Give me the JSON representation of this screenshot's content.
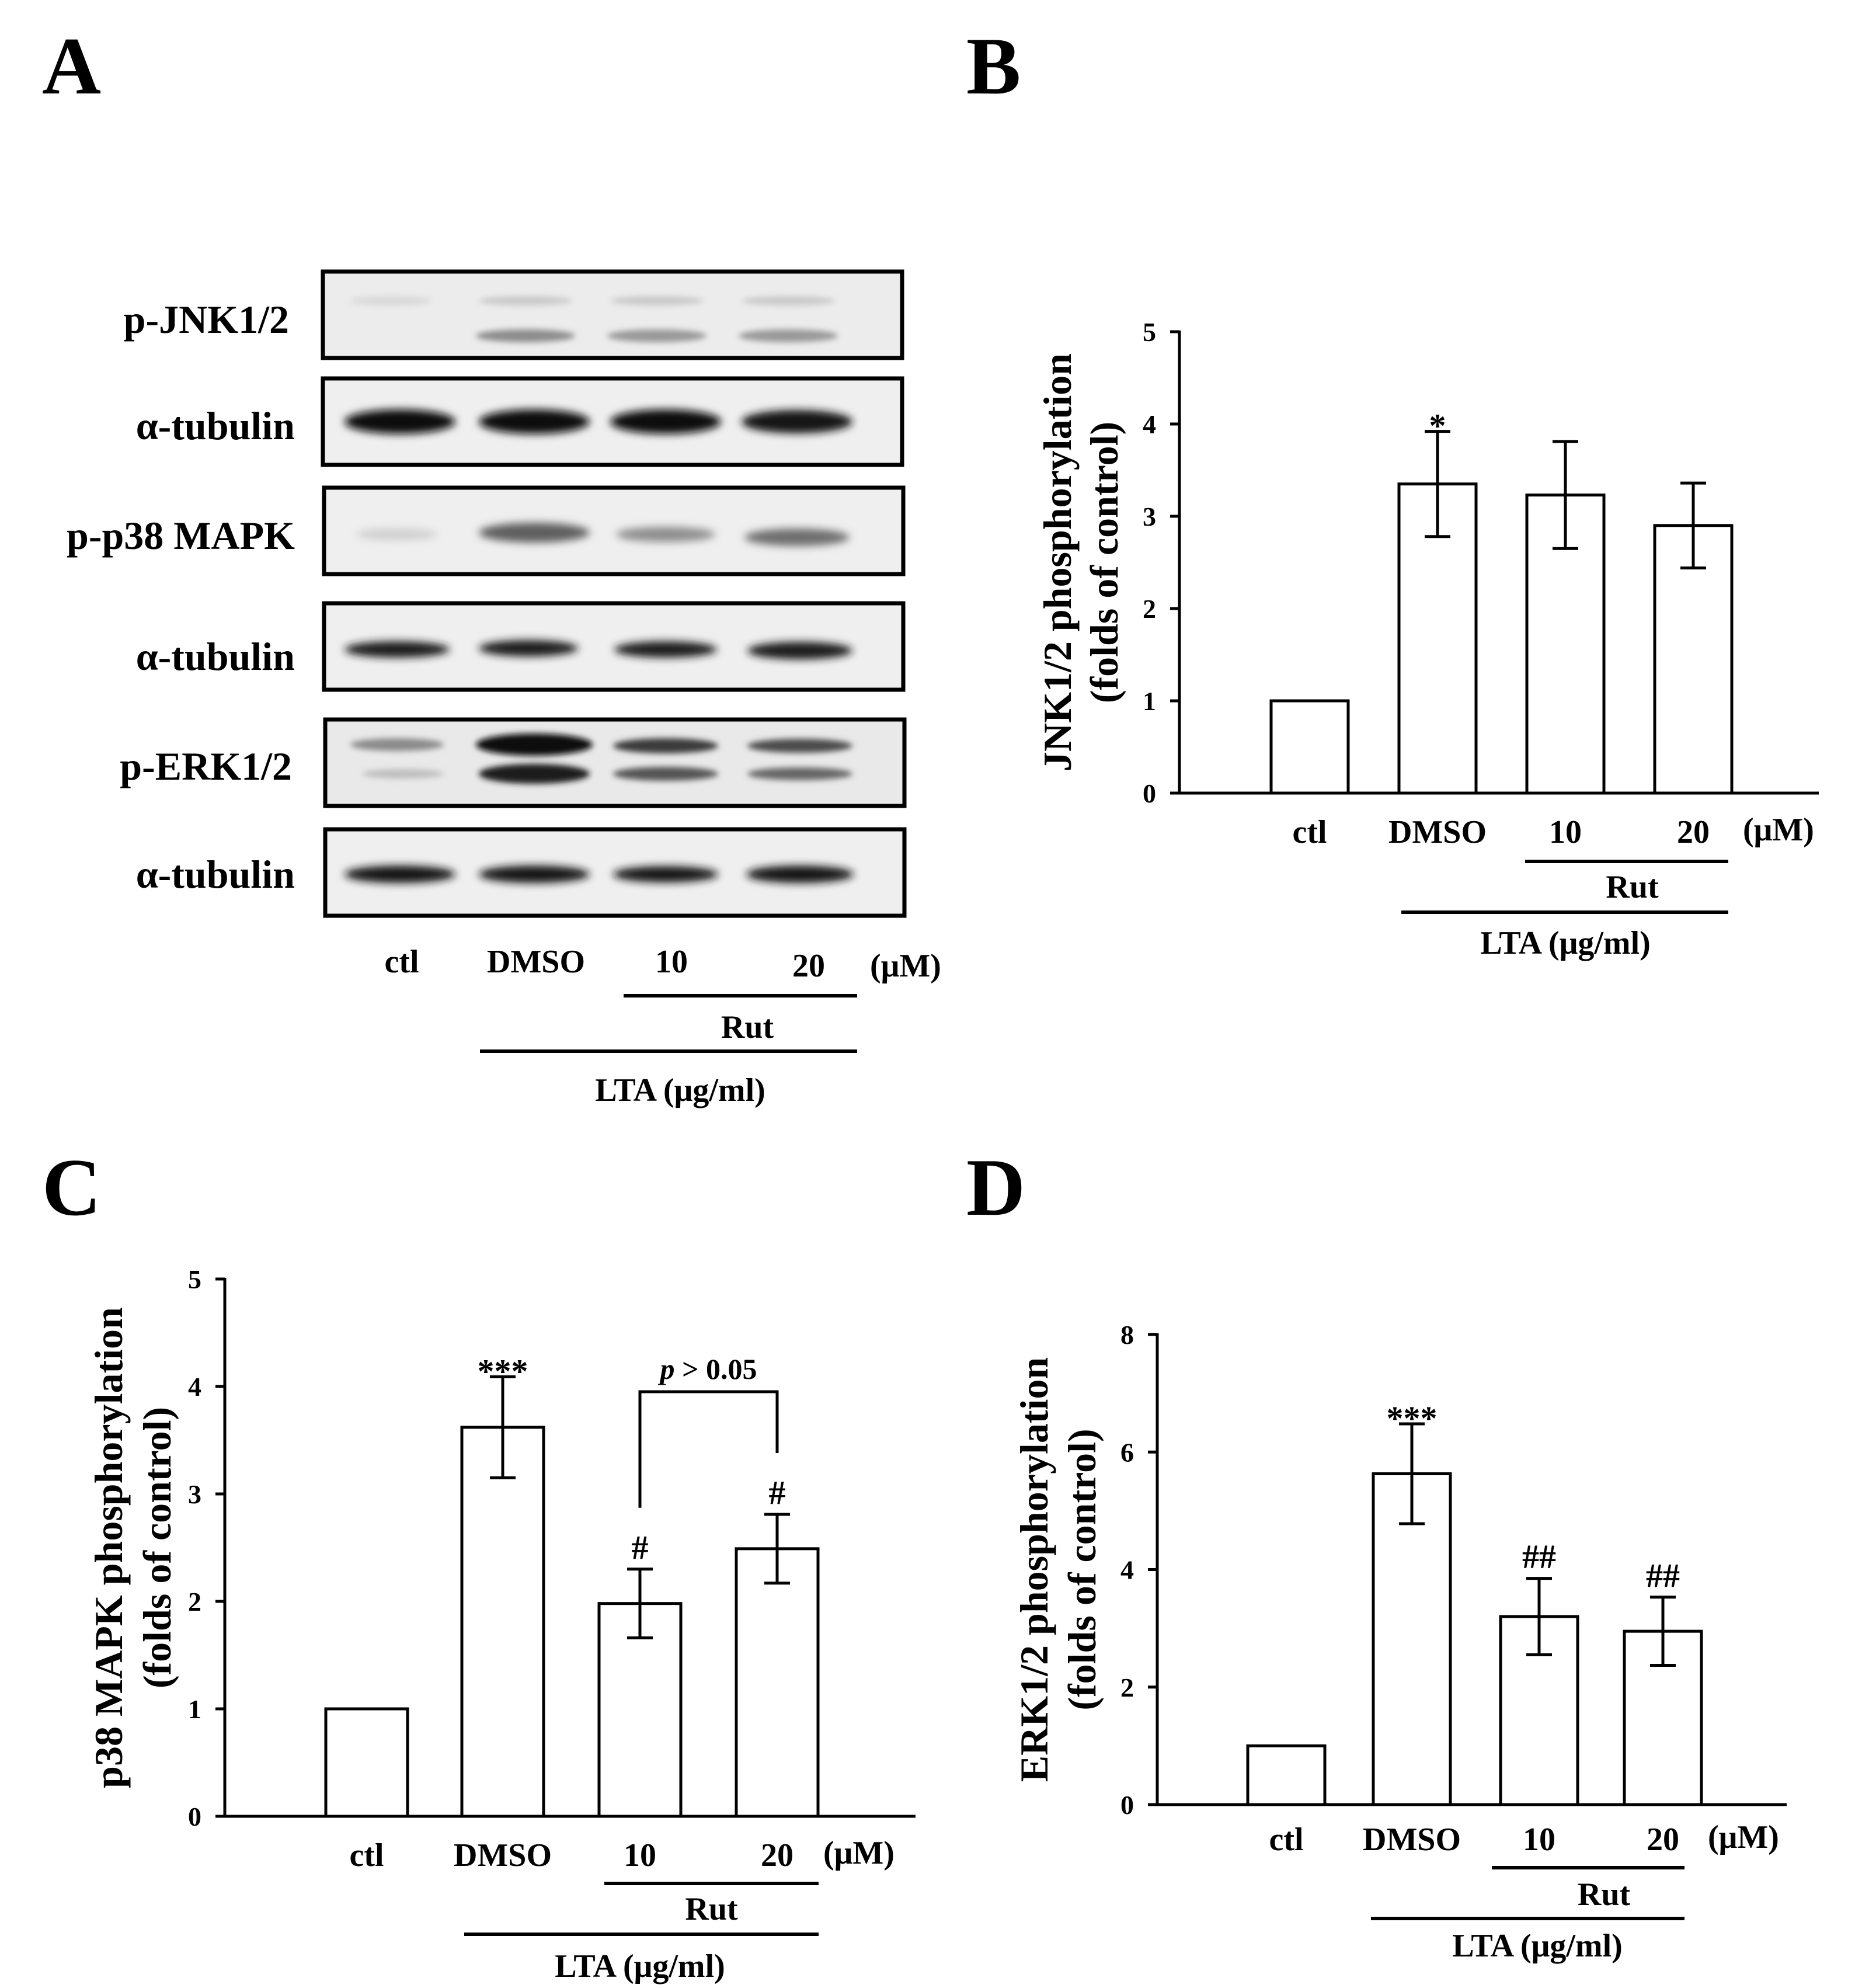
{
  "panels": [
    {
      "id": "A",
      "letter": "A"
    },
    {
      "id": "B",
      "letter": "B"
    },
    {
      "id": "C",
      "letter": "C"
    },
    {
      "id": "D",
      "letter": "D"
    }
  ],
  "blot": {
    "rows": [
      "p-JNK1/2",
      "α-tubulin",
      "p-p38 MAPK",
      "α-tubulin",
      "p-ERK1/2",
      "α-tubulin"
    ]
  },
  "x_groups": {
    "categories": [
      "ctl",
      "DMSO",
      "10",
      "20"
    ],
    "unit": "(μM)",
    "bracket_inner": "Rut",
    "bracket_outer": "LTA (μg/ml)"
  },
  "chart_data": [
    {
      "panel": "B",
      "type": "bar",
      "categories": [
        "ctl",
        "DMSO",
        "10",
        "20"
      ],
      "values": [
        1.0,
        3.35,
        3.23,
        2.9
      ],
      "errors": [
        0,
        0.57,
        0.58,
        0.46
      ],
      "annotations": [
        "",
        "*",
        "",
        ""
      ],
      "ylabel_line1": "JNK1/2 phosphorylation",
      "ylabel_line2": "(folds of control)",
      "ylim": [
        0,
        5
      ],
      "yticks": [
        0,
        1,
        2,
        3,
        4,
        5
      ]
    },
    {
      "panel": "C",
      "type": "bar",
      "categories": [
        "ctl",
        "DMSO",
        "10",
        "20"
      ],
      "values": [
        1.0,
        3.62,
        1.98,
        2.49
      ],
      "errors": [
        0,
        0.47,
        0.32,
        0.32
      ],
      "annotations": [
        "",
        "***",
        "#",
        "#"
      ],
      "comparison": {
        "between": [
          2,
          3
        ],
        "label_p": "p",
        "label_rest": " > 0.05"
      },
      "ylabel_line1": "p38 MAPK phosphorylation",
      "ylabel_line2": "(folds of control)",
      "ylim": [
        0,
        5
      ],
      "yticks": [
        0,
        1,
        2,
        3,
        4,
        5
      ]
    },
    {
      "panel": "D",
      "type": "bar",
      "categories": [
        "ctl",
        "DMSO",
        "10",
        "20"
      ],
      "values": [
        1.0,
        5.63,
        3.2,
        2.95
      ],
      "errors": [
        0,
        0.85,
        0.65,
        0.58
      ],
      "annotations": [
        "",
        "***",
        "##",
        "##"
      ],
      "ylabel_line1": "ERK1/2 phosphorylation",
      "ylabel_line2": "(folds of control)",
      "ylim": [
        0,
        8
      ],
      "yticks": [
        0,
        2,
        4,
        6,
        8
      ]
    }
  ]
}
